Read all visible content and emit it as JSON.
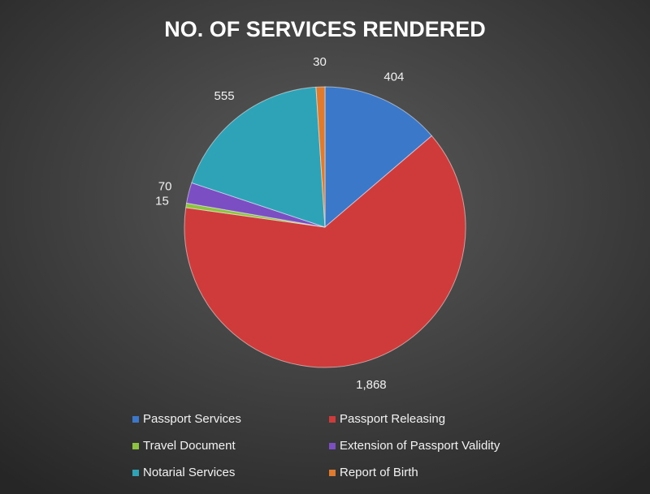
{
  "chart_data": {
    "type": "pie",
    "title": "NO. OF SERVICES RENDERED",
    "categories": [
      "Passport Services",
      "Passport Releasing",
      "Travel Document",
      "Extension of Passport Validity",
      "Notarial Services",
      "Report of Birth"
    ],
    "values": [
      404,
      1868,
      15,
      70,
      555,
      30
    ],
    "value_labels": [
      "404",
      "1,868",
      "15",
      "70",
      "555",
      "30"
    ],
    "colors": [
      "#3b78c9",
      "#cf3b3a",
      "#8cc43e",
      "#7b4fc3",
      "#2ea2b7",
      "#e07b2d"
    ],
    "legend": "bottom"
  }
}
